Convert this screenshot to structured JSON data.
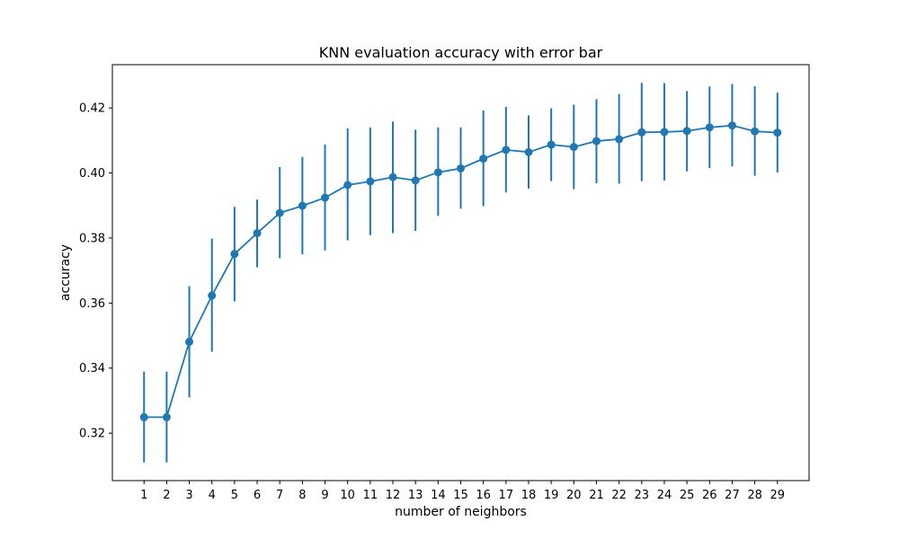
{
  "chart_data": {
    "type": "line",
    "title": "KNN evaluation accuracy with error bar",
    "xlabel": "number of neighbors",
    "ylabel": "accuracy",
    "x": [
      1,
      2,
      3,
      4,
      5,
      6,
      7,
      8,
      9,
      10,
      11,
      12,
      13,
      14,
      15,
      16,
      17,
      18,
      19,
      20,
      21,
      22,
      23,
      24,
      25,
      26,
      27,
      28,
      29
    ],
    "series": [
      {
        "values": [
          0.3249,
          0.3249,
          0.3481,
          0.3623,
          0.3751,
          0.3815,
          0.3877,
          0.3899,
          0.3924,
          0.3963,
          0.3974,
          0.3987,
          0.3977,
          0.4002,
          0.4014,
          0.4044,
          0.4071,
          0.4064,
          0.4087,
          0.408,
          0.4098,
          0.4104,
          0.4125,
          0.4126,
          0.4129,
          0.414,
          0.4146,
          0.4128,
          0.4124
        ],
        "lower": [
          0.311,
          0.311,
          0.331,
          0.345,
          0.3605,
          0.371,
          0.3738,
          0.375,
          0.3762,
          0.3793,
          0.3809,
          0.3815,
          0.3822,
          0.3868,
          0.389,
          0.3898,
          0.394,
          0.3952,
          0.3975,
          0.395,
          0.3968,
          0.3967,
          0.3975,
          0.3977,
          0.4005,
          0.4015,
          0.402,
          0.3991,
          0.4002
        ],
        "upper": [
          0.3389,
          0.3389,
          0.3652,
          0.3798,
          0.3896,
          0.3918,
          0.4018,
          0.4049,
          0.4088,
          0.4137,
          0.414,
          0.4158,
          0.4133,
          0.414,
          0.414,
          0.4192,
          0.4203,
          0.4177,
          0.4199,
          0.421,
          0.4227,
          0.4243,
          0.4277,
          0.4276,
          0.4252,
          0.4266,
          0.4274,
          0.4267,
          0.4247
        ]
      }
    ],
    "xticks": [
      "1",
      "2",
      "3",
      "4",
      "5",
      "6",
      "7",
      "8",
      "9",
      "10",
      "11",
      "12",
      "13",
      "14",
      "15",
      "16",
      "17",
      "18",
      "19",
      "20",
      "21",
      "22",
      "23",
      "24",
      "25",
      "26",
      "27",
      "28",
      "29"
    ],
    "yticks": [
      0.32,
      0.34,
      0.36,
      0.38,
      0.4,
      0.42
    ],
    "ytick_labels": [
      "0.32",
      "0.34",
      "0.36",
      "0.38",
      "0.40",
      "0.42"
    ],
    "xlim": [
      -0.4,
      30.4
    ],
    "ylim": [
      0.3054,
      0.4333
    ],
    "grid": false,
    "colors": {
      "series": "#1f77b4",
      "axes": "#000000"
    }
  }
}
